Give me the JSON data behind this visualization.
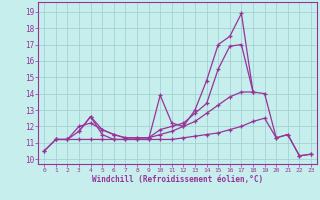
{
  "background_color": "#c5eeed",
  "line_color": "#993399",
  "grid_color": "#9ecece",
  "xlabel": "Windchill (Refroidissement éolien,°C)",
  "ylabel_ticks": [
    10,
    11,
    12,
    13,
    14,
    15,
    16,
    17,
    18,
    19
  ],
  "xlim": [
    -0.5,
    23.5
  ],
  "ylim": [
    9.7,
    19.6
  ],
  "series1_x": [
    0,
    1,
    2,
    3,
    4,
    5,
    6,
    7,
    8,
    9,
    10,
    11,
    12,
    13,
    14,
    15,
    16,
    17,
    18,
    19,
    20,
    21,
    22,
    23
  ],
  "series1_y": [
    10.5,
    11.2,
    11.2,
    11.7,
    12.6,
    11.5,
    11.2,
    11.2,
    11.2,
    11.2,
    13.9,
    12.2,
    12.0,
    13.0,
    14.8,
    17.0,
    17.5,
    18.9,
    14.1,
    14.0,
    11.3,
    11.5,
    10.2,
    10.3
  ],
  "series2_x": [
    0,
    1,
    2,
    3,
    4,
    5,
    6,
    7,
    8,
    9,
    10,
    11,
    12,
    13,
    14,
    15,
    16,
    17,
    18,
    19,
    20,
    21,
    22,
    23
  ],
  "series2_y": [
    10.5,
    11.2,
    11.2,
    11.2,
    11.2,
    11.2,
    11.2,
    11.2,
    11.2,
    11.2,
    11.2,
    11.2,
    11.3,
    11.4,
    11.5,
    11.6,
    11.8,
    12.0,
    12.3,
    12.5,
    11.3,
    11.5,
    10.2,
    10.3
  ],
  "series3_x": [
    1,
    2,
    3,
    4,
    5,
    6,
    7,
    8,
    9,
    10,
    11,
    12,
    13,
    14,
    15,
    16,
    17,
    18
  ],
  "series3_y": [
    11.2,
    11.2,
    12.0,
    12.2,
    11.8,
    11.5,
    11.3,
    11.3,
    11.3,
    11.5,
    11.7,
    12.0,
    12.3,
    12.8,
    13.3,
    13.8,
    14.1,
    14.1
  ],
  "series4_x": [
    3,
    4,
    5,
    6,
    7,
    8,
    9,
    10,
    11,
    12,
    13,
    14,
    15,
    16,
    17,
    18
  ],
  "series4_y": [
    11.7,
    12.6,
    11.8,
    11.5,
    11.3,
    11.3,
    11.3,
    11.8,
    12.0,
    12.2,
    12.8,
    13.4,
    15.5,
    16.9,
    17.0,
    14.1
  ]
}
